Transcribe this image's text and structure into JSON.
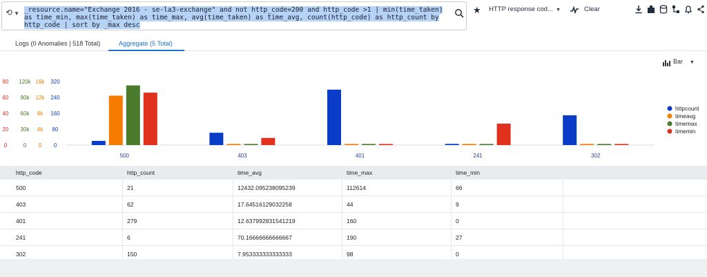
{
  "query": {
    "text": "_resource.name=\"Exchange 2016 - se-la3-exchange\" and not http_code=200 and http_code >1  |  min(time_taken) as time_min, max(time_taken) as time_max, avg(time_taken) as time_avg, count(http_code) as http_count by http_code | sort by _max desc"
  },
  "toolbar": {
    "saved_search_label": "HTTP response cod...",
    "clear_label": "Clear"
  },
  "tabs": {
    "logs": "Logs (0 Anomalies | 518 Total)",
    "aggregate": "Aggregate (5 Total)"
  },
  "chart_type_label": "Bar",
  "colors": {
    "httpcount": "#0a3cc8",
    "timeavg": "#f57c00",
    "timemax": "#4a7a2c",
    "timemin": "#e0311d",
    "accent": "#1c6fd6"
  },
  "chart_data": {
    "type": "bar",
    "categories": [
      "500",
      "403",
      "401",
      "241",
      "302"
    ],
    "series": [
      {
        "name": "httpcount",
        "values": [
          21,
          62,
          279,
          6,
          150
        ]
      },
      {
        "name": "timeavg",
        "values": [
          12432.095238095239,
          17.64516129032258,
          12.637992831541219,
          70.16666666666667,
          7.953333333333333
        ]
      },
      {
        "name": "timemax",
        "values": [
          112614,
          44,
          160,
          190,
          98
        ]
      },
      {
        "name": "timemin",
        "values": [
          66,
          9,
          0,
          27,
          0
        ]
      }
    ],
    "axes": [
      {
        "series": "timemin",
        "ticks": [
          "80",
          "60",
          "40",
          "20",
          "0"
        ],
        "max": 80
      },
      {
        "series": "timemax",
        "ticks": [
          "120k",
          "90k",
          "60k",
          "30k",
          "0"
        ],
        "max": 120000
      },
      {
        "series": "timeavg",
        "ticks": [
          "16k",
          "12k",
          "8k",
          "4k",
          "0"
        ],
        "max": 16000
      },
      {
        "series": "httpcount",
        "ticks": [
          "320",
          "240",
          "160",
          "80",
          "0"
        ],
        "max": 320
      }
    ],
    "legend_position": "right",
    "grid": false
  },
  "table": {
    "headers": [
      "http_code",
      "http_count",
      "time_avg",
      "time_max",
      "time_min"
    ],
    "rows": [
      [
        "500",
        "21",
        "12432.095238095239",
        "112614",
        "66"
      ],
      [
        "403",
        "62",
        "17.64516129032258",
        "44",
        "9"
      ],
      [
        "401",
        "279",
        "12.637992831541219",
        "160",
        "0"
      ],
      [
        "241",
        "6",
        "70.16666666666667",
        "190",
        "27"
      ],
      [
        "302",
        "150",
        "7.953333333333333",
        "98",
        "0"
      ]
    ]
  }
}
